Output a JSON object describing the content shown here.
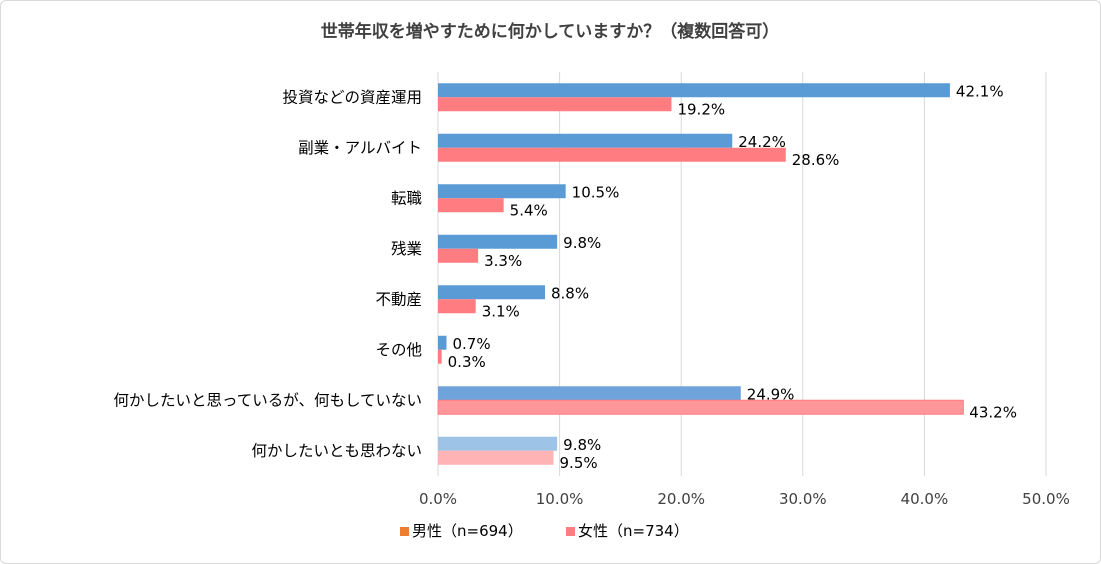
{
  "chart_data": {
    "type": "bar",
    "orientation": "horizontal",
    "title": "世帯年収を増やすために何かしていますか？（複数回答可）",
    "categories": [
      "投資などの資産運用",
      "副業・アルバイト",
      "転職",
      "残業",
      "不動産",
      "その他",
      "何かしたいと思っているが、何もしていない",
      "何かしたいとも思わない"
    ],
    "series": [
      {
        "name": "男性（n=694）",
        "color": "#5b9bd5",
        "legend_marker_color": "#ed7d31",
        "values": [
          42.1,
          24.2,
          10.5,
          9.8,
          8.8,
          0.7,
          24.9,
          9.8
        ],
        "labels": [
          "42.1%",
          "24.2%",
          "10.5%",
          "9.8%",
          "8.8%",
          "0.7%",
          "24.9%",
          "9.8%"
        ]
      },
      {
        "name": "女性（n=734）",
        "color": "#ff7c80",
        "values": [
          19.2,
          28.6,
          5.4,
          3.3,
          3.1,
          0.3,
          43.2,
          9.5
        ],
        "labels": [
          "19.2%",
          "28.6%",
          "5.4%",
          "3.3%",
          "3.1%",
          "0.3%",
          "43.2%",
          "9.5%"
        ]
      }
    ],
    "special_colors": {
      "何かしたいと思っているが、何もしていない": [
        "#6fa3db",
        "#ff979a"
      ],
      "何かしたいとも思わない": [
        "#9dc3e6",
        "#ffb3b5"
      ]
    },
    "x_ticks": [
      "0.0%",
      "10.0%",
      "20.0%",
      "30.0%",
      "40.0%",
      "50.0%"
    ],
    "xlim": [
      0,
      50
    ],
    "grid": true,
    "legend_position": "bottom"
  }
}
